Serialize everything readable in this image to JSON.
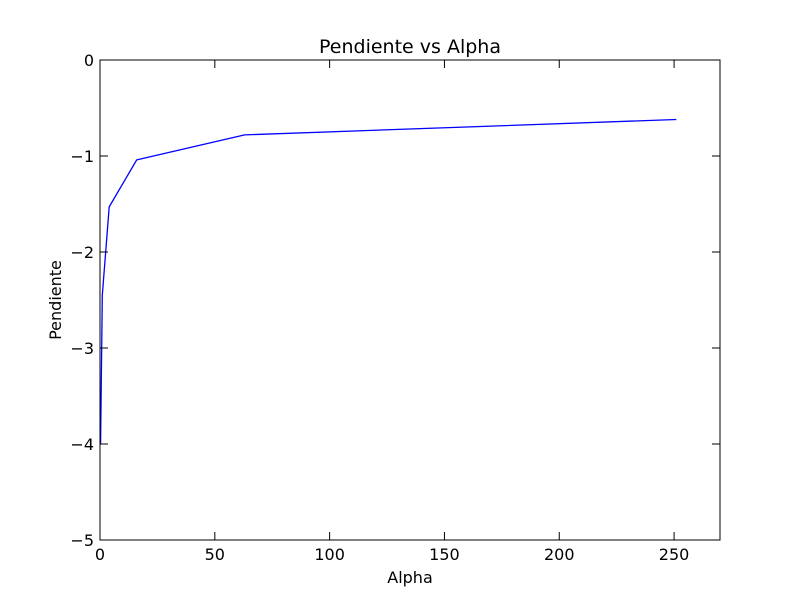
{
  "chart_data": {
    "type": "line",
    "title": "Pendiente vs Alpha",
    "xlabel": "Alpha",
    "ylabel": "Pendiente",
    "xlim": [
      0,
      270
    ],
    "ylim": [
      -5,
      0
    ],
    "xticks": [
      0,
      50,
      100,
      150,
      200,
      250
    ],
    "yticks": [
      0,
      -1,
      -2,
      -3,
      -4,
      -5
    ],
    "xtick_labels": [
      "0",
      "50",
      "100",
      "150",
      "200",
      "250"
    ],
    "ytick_labels": [
      "0",
      "−1",
      "−2",
      "−3",
      "−4",
      "−5"
    ],
    "grid": false,
    "series": [
      {
        "color": "#0000ff",
        "x": [
          0.25,
          1,
          4,
          16,
          63,
          251
        ],
        "y": [
          -4.0,
          -2.45,
          -1.53,
          -1.04,
          -0.78,
          -0.62
        ]
      }
    ]
  }
}
